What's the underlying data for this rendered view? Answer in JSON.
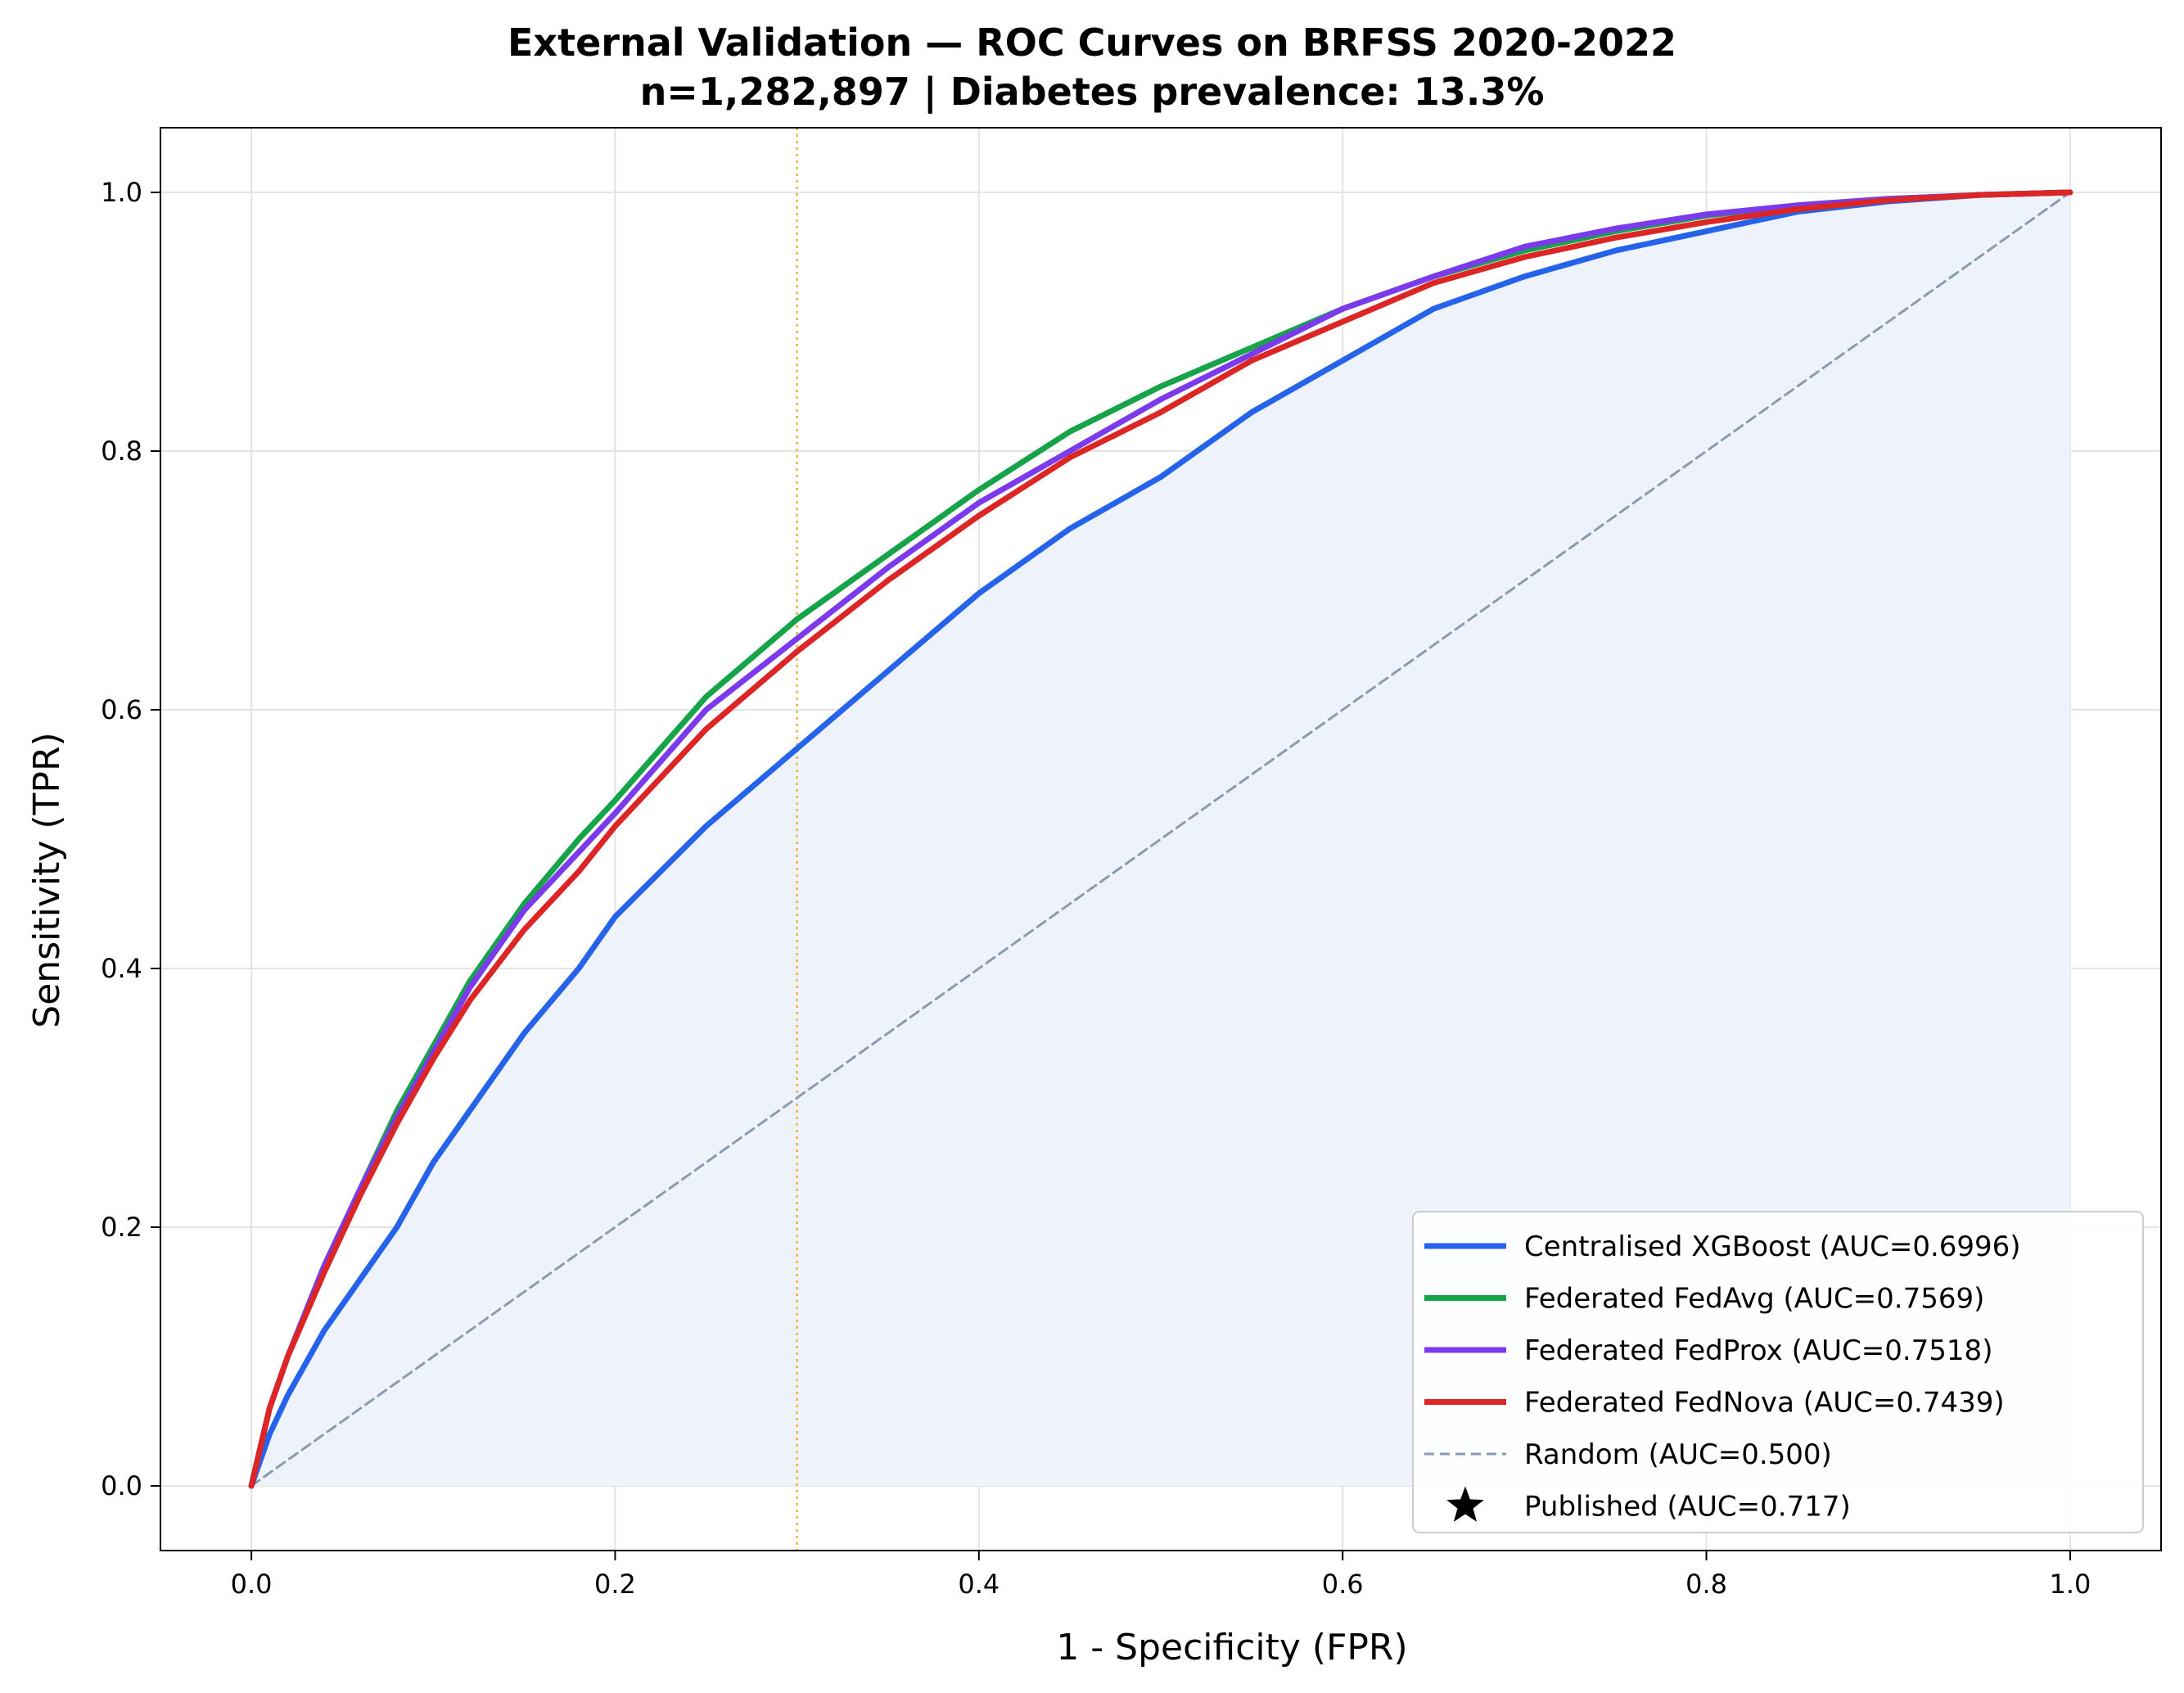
{
  "chart_data": {
    "type": "line",
    "title": "External Validation — ROC Curves on BRFSS 2020-2022",
    "subtitle": "n=1,282,897 | Diabetes prevalence: 13.3%",
    "xlabel": "1 - Specificity (FPR)",
    "ylabel": "Sensitivity (TPR)",
    "xlim": [
      -0.05,
      1.05
    ],
    "ylim": [
      -0.05,
      1.05
    ],
    "xticks": [
      "0.0",
      "0.2",
      "0.4",
      "0.6",
      "0.8",
      "1.0"
    ],
    "yticks": [
      "0.0",
      "0.2",
      "0.4",
      "0.6",
      "0.8",
      "1.0"
    ],
    "grid": true,
    "legend_position": "lower-right",
    "threshold_line": {
      "x": 0.3,
      "color": "#f0b040",
      "style": "dotted"
    },
    "series": [
      {
        "name": "Centralised XGBoost (AUC=0.6996)",
        "color": "#2563eb",
        "fill": "#eef3fb",
        "x": [
          0,
          0.01,
          0.02,
          0.04,
          0.06,
          0.08,
          0.1,
          0.12,
          0.15,
          0.18,
          0.2,
          0.25,
          0.3,
          0.35,
          0.4,
          0.45,
          0.5,
          0.55,
          0.6,
          0.65,
          0.7,
          0.75,
          0.8,
          0.85,
          0.9,
          0.95,
          1.0
        ],
        "y": [
          0,
          0.04,
          0.07,
          0.12,
          0.16,
          0.2,
          0.25,
          0.29,
          0.35,
          0.4,
          0.44,
          0.51,
          0.57,
          0.63,
          0.69,
          0.74,
          0.78,
          0.83,
          0.87,
          0.91,
          0.935,
          0.955,
          0.97,
          0.985,
          0.993,
          0.998,
          1.0
        ]
      },
      {
        "name": "Federated FedAvg (AUC=0.7569)",
        "color": "#16a34a",
        "x": [
          0,
          0.01,
          0.02,
          0.04,
          0.06,
          0.08,
          0.1,
          0.12,
          0.15,
          0.18,
          0.2,
          0.25,
          0.3,
          0.35,
          0.4,
          0.45,
          0.5,
          0.55,
          0.6,
          0.65,
          0.7,
          0.75,
          0.8,
          0.85,
          0.9,
          0.95,
          1.0
        ],
        "y": [
          0,
          0.06,
          0.1,
          0.17,
          0.23,
          0.29,
          0.34,
          0.39,
          0.45,
          0.5,
          0.53,
          0.61,
          0.67,
          0.72,
          0.77,
          0.815,
          0.85,
          0.88,
          0.91,
          0.935,
          0.955,
          0.97,
          0.982,
          0.99,
          0.995,
          0.998,
          1.0
        ]
      },
      {
        "name": "Federated FedProx (AUC=0.7518)",
        "color": "#7c3aed",
        "x": [
          0,
          0.01,
          0.02,
          0.04,
          0.06,
          0.08,
          0.1,
          0.12,
          0.15,
          0.18,
          0.2,
          0.25,
          0.3,
          0.35,
          0.4,
          0.45,
          0.5,
          0.55,
          0.6,
          0.65,
          0.7,
          0.75,
          0.8,
          0.85,
          0.9,
          0.95,
          1.0
        ],
        "y": [
          0,
          0.06,
          0.1,
          0.17,
          0.23,
          0.285,
          0.335,
          0.385,
          0.445,
          0.49,
          0.52,
          0.6,
          0.655,
          0.71,
          0.76,
          0.8,
          0.84,
          0.875,
          0.91,
          0.935,
          0.958,
          0.972,
          0.983,
          0.99,
          0.995,
          0.998,
          1.0
        ]
      },
      {
        "name": "Federated FedNova (AUC=0.7439)",
        "color": "#dc2626",
        "x": [
          0,
          0.01,
          0.02,
          0.04,
          0.06,
          0.08,
          0.1,
          0.12,
          0.15,
          0.18,
          0.2,
          0.25,
          0.3,
          0.35,
          0.4,
          0.45,
          0.5,
          0.55,
          0.6,
          0.65,
          0.7,
          0.75,
          0.8,
          0.85,
          0.9,
          0.95,
          1.0
        ],
        "y": [
          0,
          0.06,
          0.1,
          0.165,
          0.225,
          0.28,
          0.33,
          0.375,
          0.43,
          0.475,
          0.51,
          0.585,
          0.645,
          0.7,
          0.75,
          0.795,
          0.83,
          0.87,
          0.9,
          0.93,
          0.95,
          0.965,
          0.977,
          0.987,
          0.994,
          0.998,
          1.0
        ]
      },
      {
        "name": "Random (AUC=0.500)",
        "color": "#8a9bb0",
        "style": "dashed",
        "x": [
          0,
          1
        ],
        "y": [
          0,
          1
        ]
      }
    ],
    "legend_extra": {
      "name": "Published (AUC=0.717)",
      "marker": "star",
      "color": "#000000"
    }
  }
}
